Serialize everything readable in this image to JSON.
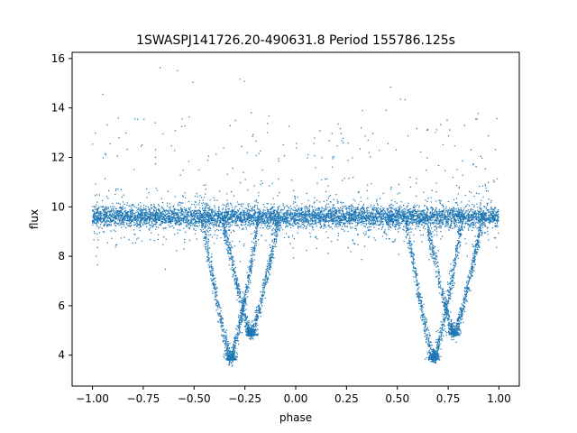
{
  "chart_data": {
    "type": "scatter",
    "title": "1SWASPJ141726.20-490631.8 Period 155786.125s",
    "xlabel": "phase",
    "ylabel": "flux",
    "xlim": [
      -1.1,
      1.1
    ],
    "ylim": [
      2.75,
      16.25
    ],
    "xticks": [
      -1.0,
      -0.75,
      -0.5,
      -0.25,
      0.0,
      0.25,
      0.5,
      0.75,
      1.0
    ],
    "xtick_labels": [
      "−1.00",
      "−0.75",
      "−0.50",
      "−0.25",
      "0.00",
      "0.25",
      "0.50",
      "0.75",
      "1.00"
    ],
    "yticks": [
      4,
      6,
      8,
      10,
      12,
      14,
      16
    ],
    "ytick_labels": [
      "4",
      "6",
      "8",
      "10",
      "12",
      "14",
      "16"
    ],
    "grid": false,
    "legend": "none",
    "marker_color": "#1f77b4",
    "phase_range": [
      -1.0,
      1.0
    ],
    "baseline_flux": 9.6,
    "eclipses": [
      {
        "phase_center": -0.32,
        "min_flux": 3.8
      },
      {
        "phase_center": 0.68,
        "min_flux": 3.8
      }
    ],
    "secondary_dips": [
      {
        "phase_center": -0.22,
        "min_flux": 4.8
      },
      {
        "phase_center": 0.78,
        "min_flux": 4.8
      }
    ]
  }
}
